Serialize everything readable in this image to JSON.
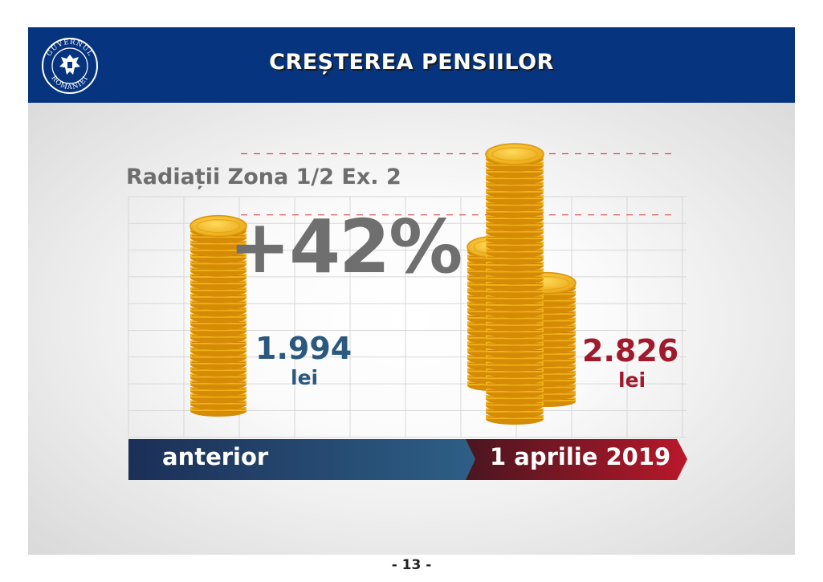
{
  "header": {
    "title": "CREȘTEREA PENSIILOR",
    "logo_text_top": "GUVERNUL",
    "logo_text_bottom": "ROMÂNIEI"
  },
  "page_number": "- 13 -",
  "colors": {
    "header_bg": "#06347f",
    "before_color": "#2b587e",
    "after_color": "#9e1a2c",
    "coin_gold": "#f2b418"
  },
  "chart_data": {
    "type": "bar",
    "title": "Radiații Zona 1/2 Ex. 2",
    "increase_label": "+42%",
    "unit": "lei",
    "categories": [
      "anterior",
      "1 aprilie 2019"
    ],
    "values": [
      1994,
      2826
    ],
    "value_labels": [
      "1.994",
      "2.826"
    ],
    "grid": true
  }
}
